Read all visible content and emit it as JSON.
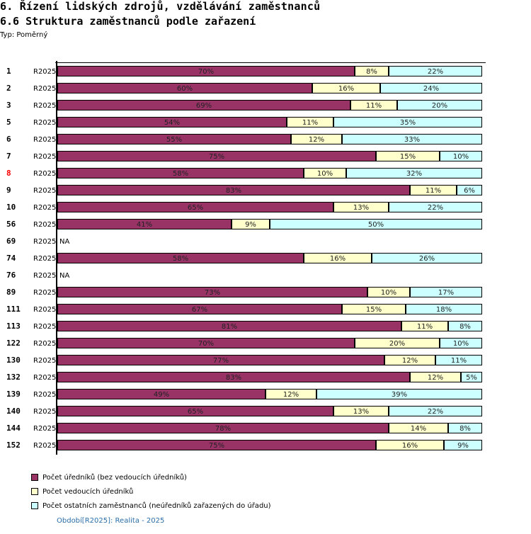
{
  "header": {
    "title": "6. Řízení lidských zdrojů, vzdělávání zaměstnanců",
    "subtitle": "6.6 Struktura zaměstnanců podle zařazení",
    "type_label": "Typ: Poměrný"
  },
  "colors": {
    "series1": "#993366",
    "series2": "#ffffcc",
    "series3": "#ccffff",
    "highlight_label": "#ff0000",
    "period_text": "#2a6ea8"
  },
  "chart_data": {
    "type": "bar",
    "orientation": "horizontal",
    "stacked": true,
    "normalized": true,
    "title": "6.6 Struktura zaměstnanců podle zařazení",
    "xlabel": "",
    "ylabel": "",
    "xlim": [
      0,
      100
    ],
    "unit": "%",
    "grid": false,
    "legend_position": "bottom-left",
    "categories": [
      "1",
      "2",
      "3",
      "5",
      "6",
      "7",
      "8",
      "9",
      "10",
      "56",
      "69",
      "74",
      "76",
      "89",
      "111",
      "113",
      "122",
      "130",
      "132",
      "139",
      "140",
      "144",
      "152"
    ],
    "highlighted_category": "8",
    "series_label": "R2025",
    "series": [
      {
        "name": "Počet úředníků (bez vedoucích úředníků)",
        "color": "#993366",
        "values": [
          70,
          60,
          69,
          54,
          55,
          75,
          58,
          83,
          65,
          41,
          null,
          58,
          null,
          73,
          67,
          81,
          70,
          77,
          83,
          49,
          65,
          78,
          75
        ]
      },
      {
        "name": "Počet vedoucích úředníků",
        "color": "#ffffcc",
        "values": [
          8,
          16,
          11,
          11,
          12,
          15,
          10,
          11,
          13,
          9,
          null,
          16,
          null,
          10,
          15,
          11,
          20,
          12,
          12,
          12,
          13,
          14,
          16
        ]
      },
      {
        "name": "Počet ostatních zaměstnanců (neúředníků zařazených do úřadu)",
        "color": "#ccffff",
        "values": [
          22,
          24,
          20,
          35,
          33,
          10,
          32,
          6,
          22,
          50,
          null,
          26,
          null,
          17,
          18,
          8,
          10,
          11,
          5,
          39,
          22,
          8,
          9
        ]
      }
    ],
    "na_label": "NA"
  },
  "legend": {
    "items": [
      {
        "label": "Počet úředníků (bez vedoucích úředníků)",
        "color": "#993366"
      },
      {
        "label": "Počet vedoucích úředníků",
        "color": "#ffffcc"
      },
      {
        "label": "Počet ostatních zaměstnanců (neúředníků zařazených do úřadu)",
        "color": "#ccffff"
      }
    ]
  },
  "footer": {
    "period": "Období[R2025]: Realita - 2025"
  }
}
